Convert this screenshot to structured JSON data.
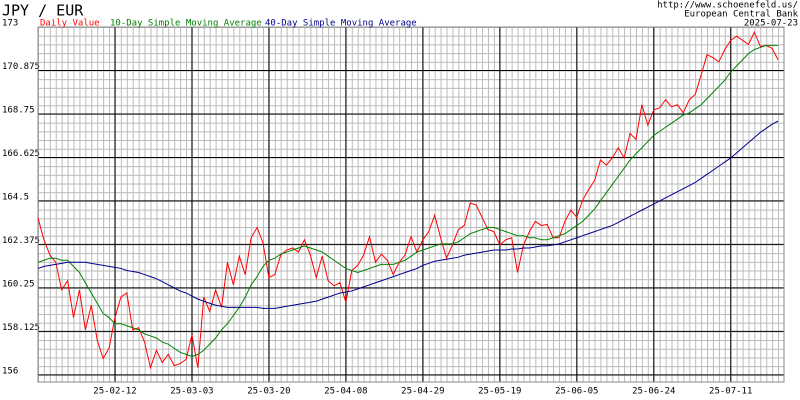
{
  "chart_data": {
    "type": "line",
    "title": "JPY / EUR",
    "source_url": "http://www.schoenefeld.us/",
    "source": "European Central Bank",
    "date": "2025-07-23",
    "categories": [
      null,
      null,
      null,
      null,
      null,
      null,
      null,
      null,
      null,
      null,
      null,
      null,
      null,
      "25-02-12",
      null,
      null,
      null,
      null,
      null,
      null,
      null,
      null,
      null,
      null,
      null,
      null,
      "25-03-03",
      null,
      null,
      null,
      null,
      null,
      null,
      null,
      null,
      null,
      null,
      null,
      null,
      "25-03-20",
      null,
      null,
      null,
      null,
      null,
      null,
      null,
      null,
      null,
      null,
      null,
      null,
      "25-04-08",
      null,
      null,
      null,
      null,
      null,
      null,
      null,
      null,
      null,
      null,
      null,
      null,
      "25-04-29",
      null,
      null,
      null,
      null,
      null,
      null,
      null,
      null,
      null,
      null,
      null,
      null,
      "25-05-19",
      null,
      null,
      null,
      null,
      null,
      null,
      null,
      null,
      null,
      null,
      null,
      null,
      "25-06-05",
      null,
      null,
      null,
      null,
      null,
      null,
      null,
      null,
      null,
      null,
      null,
      null,
      "25-06-24",
      null,
      null,
      null,
      null,
      null,
      null,
      null,
      null,
      null,
      null,
      null,
      null,
      "25-07-11",
      null,
      null,
      null,
      null,
      null,
      null,
      null,
      null
    ],
    "series": [
      {
        "name": "Daily Value",
        "color": "#ff0000",
        "values": [
          163.67,
          162.6,
          161.86,
          161.5,
          160.15,
          160.6,
          158.8,
          160.15,
          158.2,
          159.4,
          157.7,
          156.8,
          157.3,
          158.8,
          159.8,
          160.0,
          158.2,
          158.3,
          157.6,
          156.35,
          157.2,
          156.6,
          157.0,
          156.45,
          156.55,
          156.75,
          157.95,
          156.35,
          159.8,
          159.1,
          160.15,
          159.3,
          161.5,
          160.4,
          161.8,
          160.9,
          162.7,
          163.2,
          162.45,
          160.75,
          160.9,
          161.86,
          162.1,
          162.2,
          162.0,
          162.6,
          161.86,
          160.75,
          161.8,
          160.6,
          160.35,
          160.5,
          159.55,
          161.1,
          161.35,
          161.86,
          162.75,
          161.5,
          161.9,
          161.6,
          160.9,
          161.5,
          161.86,
          162.75,
          162.0,
          162.6,
          163.0,
          163.8,
          162.7,
          161.7,
          162.35,
          163.1,
          163.3,
          164.4,
          164.3,
          163.7,
          163.1,
          163.0,
          162.35,
          162.6,
          162.7,
          161.0,
          162.35,
          163.0,
          163.5,
          163.3,
          163.35,
          162.7,
          162.7,
          163.5,
          164.05,
          163.7,
          164.55,
          165.05,
          165.5,
          166.5,
          166.25,
          166.6,
          167.1,
          166.6,
          167.8,
          167.5,
          169.2,
          168.2,
          168.95,
          169.05,
          169.45,
          169.1,
          169.2,
          168.8,
          169.45,
          169.7,
          170.65,
          171.65,
          171.5,
          171.3,
          171.9,
          172.35,
          172.55,
          172.35,
          172.15,
          172.75,
          172.05,
          172.1,
          171.95,
          171.4
        ]
      },
      {
        "name": "10-Day Simple Moving Average",
        "color": "#008000",
        "values": [
          161.5,
          161.6,
          161.7,
          161.7,
          161.6,
          161.6,
          161.3,
          161.0,
          160.5,
          160.0,
          159.5,
          159.0,
          158.8,
          158.5,
          158.5,
          158.4,
          158.3,
          158.2,
          158.0,
          157.9,
          157.8,
          157.6,
          157.5,
          157.3,
          157.1,
          157.0,
          156.9,
          157.0,
          157.2,
          157.5,
          157.8,
          158.2,
          158.5,
          158.9,
          159.3,
          159.8,
          160.4,
          160.8,
          161.3,
          161.6,
          161.7,
          161.9,
          162.0,
          162.1,
          162.2,
          162.3,
          162.2,
          162.1,
          162.0,
          161.8,
          161.6,
          161.4,
          161.2,
          161.1,
          161.0,
          161.1,
          161.2,
          161.3,
          161.4,
          161.4,
          161.4,
          161.5,
          161.6,
          161.8,
          162.0,
          162.1,
          162.2,
          162.3,
          162.4,
          162.4,
          162.4,
          162.5,
          162.7,
          162.9,
          163.0,
          163.1,
          163.2,
          163.2,
          163.1,
          163.0,
          162.9,
          162.8,
          162.8,
          162.7,
          162.7,
          162.6,
          162.6,
          162.7,
          162.8,
          162.9,
          163.1,
          163.3,
          163.5,
          163.8,
          164.1,
          164.5,
          164.9,
          165.3,
          165.7,
          166.1,
          166.5,
          166.8,
          167.1,
          167.4,
          167.7,
          167.9,
          168.1,
          168.3,
          168.5,
          168.7,
          168.8,
          169.0,
          169.2,
          169.5,
          169.8,
          170.1,
          170.4,
          170.8,
          171.1,
          171.4,
          171.7,
          171.9,
          172.0,
          172.1,
          172.1,
          172.1
        ]
      },
      {
        "name": "40-Day Simple Moving Average",
        "color": "#00008b",
        "values": [
          161.2,
          161.3,
          161.35,
          161.4,
          161.45,
          161.5,
          161.5,
          161.5,
          161.5,
          161.45,
          161.4,
          161.35,
          161.3,
          161.25,
          161.2,
          161.1,
          161.05,
          161.0,
          160.9,
          160.8,
          160.7,
          160.55,
          160.4,
          160.25,
          160.1,
          160.0,
          159.85,
          159.7,
          159.6,
          159.5,
          159.4,
          159.35,
          159.3,
          159.3,
          159.3,
          159.3,
          159.3,
          159.3,
          159.25,
          159.25,
          159.25,
          159.3,
          159.35,
          159.4,
          159.45,
          159.5,
          159.55,
          159.6,
          159.7,
          159.8,
          159.9,
          160.0,
          160.05,
          160.1,
          160.2,
          160.3,
          160.4,
          160.5,
          160.6,
          160.7,
          160.8,
          160.9,
          161.0,
          161.1,
          161.2,
          161.35,
          161.45,
          161.55,
          161.6,
          161.65,
          161.7,
          161.75,
          161.85,
          161.9,
          161.95,
          162.0,
          162.05,
          162.1,
          162.1,
          162.1,
          162.15,
          162.15,
          162.2,
          162.2,
          162.25,
          162.3,
          162.3,
          162.35,
          162.4,
          162.5,
          162.6,
          162.7,
          162.8,
          162.9,
          163.0,
          163.1,
          163.2,
          163.3,
          163.45,
          163.6,
          163.75,
          163.9,
          164.05,
          164.2,
          164.35,
          164.5,
          164.65,
          164.8,
          164.95,
          165.1,
          165.25,
          165.4,
          165.6,
          165.8,
          166.0,
          166.2,
          166.4,
          166.6,
          166.85,
          167.1,
          167.35,
          167.6,
          167.85,
          168.05,
          168.25,
          168.4
        ]
      }
    ],
    "ylim": [
      155.65,
      173
    ],
    "yticks": [
      156,
      158.125,
      160.25,
      162.375,
      164.5,
      166.625,
      168.75,
      170.875,
      173
    ],
    "grid": true
  }
}
